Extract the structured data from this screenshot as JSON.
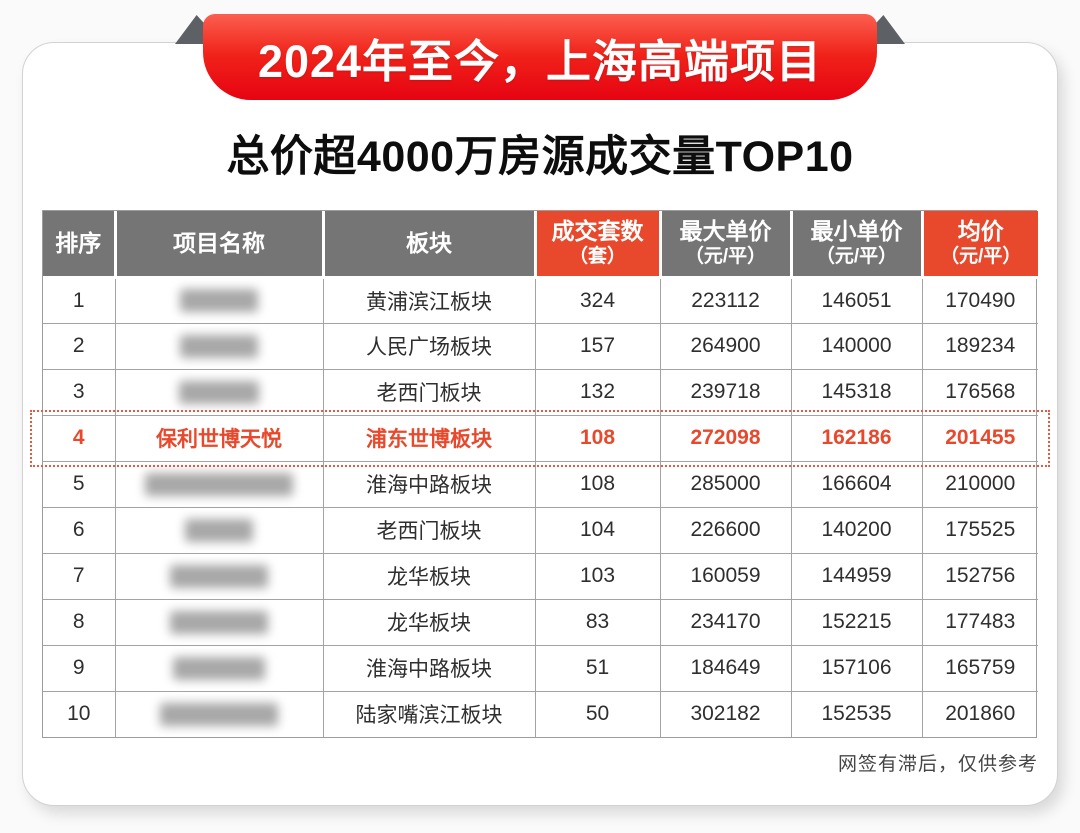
{
  "banner": {
    "title": "2024年至今，上海高端项目"
  },
  "subtitle": "总价超4000万房源成交量TOP10",
  "table": {
    "columns": [
      {
        "label": "排序",
        "unit": ""
      },
      {
        "label": "项目名称",
        "unit": ""
      },
      {
        "label": "板块",
        "unit": ""
      },
      {
        "label": "成交套数",
        "unit": "（套）"
      },
      {
        "label": "最大单价",
        "unit": "（元/平）"
      },
      {
        "label": "最小单价",
        "unit": "（元/平）"
      },
      {
        "label": "均价",
        "unit": "（元/平）"
      }
    ],
    "rows": [
      {
        "rank": "1",
        "project": "",
        "project_blurred": true,
        "blur_width": 78,
        "district": "黄浦滨江板块",
        "count": "324",
        "max_price": "223112",
        "min_price": "146051",
        "avg_price": "170490",
        "highlight": false
      },
      {
        "rank": "2",
        "project": "",
        "project_blurred": true,
        "blur_width": 78,
        "district": "人民广场板块",
        "count": "157",
        "max_price": "264900",
        "min_price": "140000",
        "avg_price": "189234",
        "highlight": false
      },
      {
        "rank": "3",
        "project": "",
        "project_blurred": true,
        "blur_width": 80,
        "district": "老西门板块",
        "count": "132",
        "max_price": "239718",
        "min_price": "145318",
        "avg_price": "176568",
        "highlight": false
      },
      {
        "rank": "4",
        "project": "保利世博天悦",
        "project_blurred": false,
        "blur_width": 0,
        "district": "浦东世博板块",
        "count": "108",
        "max_price": "272098",
        "min_price": "162186",
        "avg_price": "201455",
        "highlight": true
      },
      {
        "rank": "5",
        "project": "",
        "project_blurred": true,
        "blur_width": 148,
        "district": "淮海中路板块",
        "count": "108",
        "max_price": "285000",
        "min_price": "166604",
        "avg_price": "210000",
        "highlight": false
      },
      {
        "rank": "6",
        "project": "",
        "project_blurred": true,
        "blur_width": 68,
        "district": "老西门板块",
        "count": "104",
        "max_price": "226600",
        "min_price": "140200",
        "avg_price": "175525",
        "highlight": false
      },
      {
        "rank": "7",
        "project": "",
        "project_blurred": true,
        "blur_width": 98,
        "district": "龙华板块",
        "count": "103",
        "max_price": "160059",
        "min_price": "144959",
        "avg_price": "152756",
        "highlight": false
      },
      {
        "rank": "8",
        "project": "",
        "project_blurred": true,
        "blur_width": 98,
        "district": "龙华板块",
        "count": "83",
        "max_price": "234170",
        "min_price": "152215",
        "avg_price": "177483",
        "highlight": false
      },
      {
        "rank": "9",
        "project": "",
        "project_blurred": true,
        "blur_width": 92,
        "district": "淮海中路板块",
        "count": "51",
        "max_price": "184649",
        "min_price": "157106",
        "avg_price": "165759",
        "highlight": false
      },
      {
        "rank": "10",
        "project": "",
        "project_blurred": true,
        "blur_width": 118,
        "district": "陆家嘴滨江板块",
        "count": "50",
        "max_price": "302182",
        "min_price": "152535",
        "avg_price": "201860",
        "highlight": false
      }
    ]
  },
  "footer": {
    "note": "网签有滞后，仅供参考"
  },
  "colors": {
    "accent_red": "#e8492c",
    "header_gray": "#757575",
    "ribbon_top": "#fb5f50",
    "ribbon_bottom": "#e60312",
    "fold_gray": "#5d6065",
    "grid_line": "#a3a3a3"
  },
  "chart_data": {
    "type": "table",
    "title": "2024年至今，上海高端项目 总价超4000万房源成交量TOP10",
    "columns": [
      "排序",
      "项目名称",
      "板块",
      "成交套数（套）",
      "最大单价（元/平）",
      "最小单价（元/平）",
      "均价（元/平）"
    ],
    "rows": [
      [
        "1",
        "",
        "黄浦滨江板块",
        324,
        223112,
        146051,
        170490
      ],
      [
        "2",
        "",
        "人民广场板块",
        157,
        264900,
        140000,
        189234
      ],
      [
        "3",
        "",
        "老西门板块",
        132,
        239718,
        145318,
        176568
      ],
      [
        "4",
        "保利世博天悦",
        "浦东世博板块",
        108,
        272098,
        162186,
        201455
      ],
      [
        "5",
        "",
        "淮海中路板块",
        108,
        285000,
        166604,
        210000
      ],
      [
        "6",
        "",
        "老西门板块",
        104,
        226600,
        140200,
        175525
      ],
      [
        "7",
        "",
        "龙华板块",
        103,
        160059,
        144959,
        152756
      ],
      [
        "8",
        "",
        "龙华板块",
        83,
        234170,
        152215,
        177483
      ],
      [
        "9",
        "",
        "淮海中路板块",
        51,
        184649,
        157106,
        165759
      ],
      [
        "10",
        "",
        "陆家嘴滨江板块",
        50,
        302182,
        152535,
        201860
      ]
    ],
    "notes": "行4高亮（红色加粗+红色虚线框）；其余项目名称被模糊处理"
  }
}
